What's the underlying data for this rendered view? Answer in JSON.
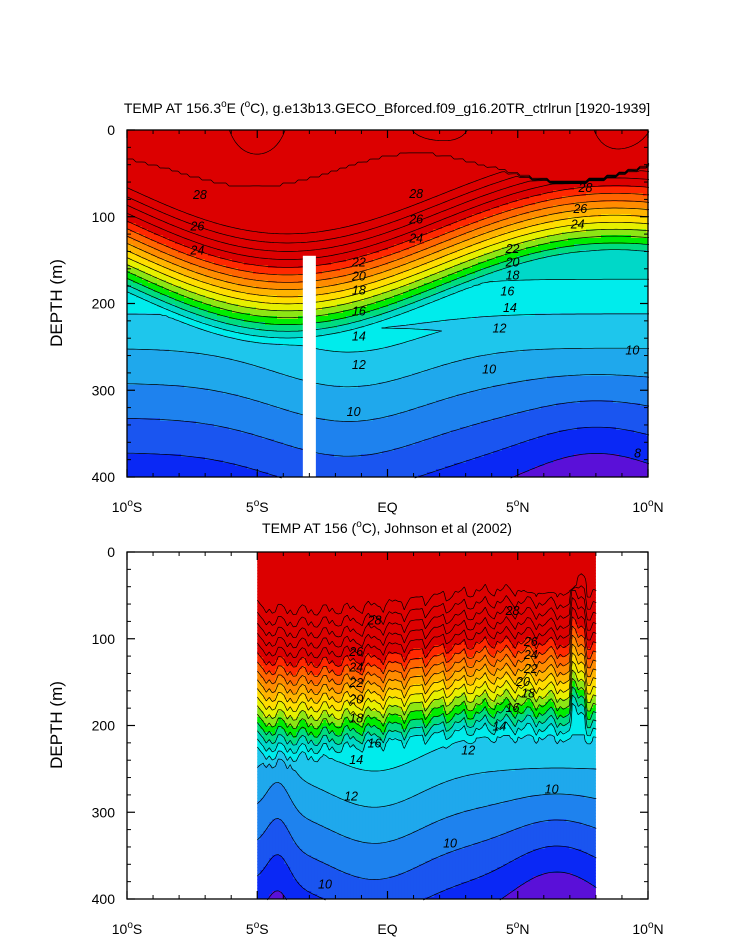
{
  "chart_data": [
    {
      "type": "contour",
      "title_prefix": "TEMP AT 156.3",
      "title_sup1": "o",
      "title_mid": "E (",
      "title_sup2": "o",
      "title_suffix": "C), g.e13b13.GECO_Bforced.f09_g16.20TR_ctrlrun [1920-1939]",
      "ylabel": "DEPTH (m)",
      "xlabel": "",
      "xlim": [
        -10,
        10
      ],
      "ylim": [
        0,
        400
      ],
      "y_inverted": true,
      "x_ticks": [
        {
          "v": -10,
          "num": "10",
          "sup": "o",
          "dir": "S"
        },
        {
          "v": -5,
          "num": "5",
          "sup": "o",
          "dir": "S"
        },
        {
          "v": 0,
          "num": "EQ",
          "sup": "",
          "dir": ""
        },
        {
          "v": 5,
          "num": "5",
          "sup": "o",
          "dir": "N"
        },
        {
          "v": 10,
          "num": "10",
          "sup": "o",
          "dir": "N"
        }
      ],
      "y_ticks": [
        0,
        100,
        200,
        300,
        400
      ],
      "contour_interval": 1,
      "no_data_x_range": [
        -3.25,
        -2.75
      ],
      "no_data_min_depth": 145,
      "contour_labels": [
        {
          "text": "28",
          "x": -7.2,
          "y": 75
        },
        {
          "text": "28",
          "x": 1.1,
          "y": 74
        },
        {
          "text": "28",
          "x": 7.6,
          "y": 67
        },
        {
          "text": "26",
          "x": -7.3,
          "y": 111
        },
        {
          "text": "26",
          "x": 1.1,
          "y": 103
        },
        {
          "text": "26",
          "x": 7.4,
          "y": 91
        },
        {
          "text": "24",
          "x": -7.3,
          "y": 139
        },
        {
          "text": "24",
          "x": 1.1,
          "y": 125
        },
        {
          "text": "24",
          "x": 7.3,
          "y": 109
        },
        {
          "text": "22",
          "x": -1.1,
          "y": 153
        },
        {
          "text": "22",
          "x": 4.8,
          "y": 137
        },
        {
          "text": "20",
          "x": -1.1,
          "y": 169
        },
        {
          "text": "20",
          "x": 4.8,
          "y": 153
        },
        {
          "text": "18",
          "x": -1.1,
          "y": 185
        },
        {
          "text": "18",
          "x": 4.8,
          "y": 168
        },
        {
          "text": "16",
          "x": -1.1,
          "y": 209
        },
        {
          "text": "16",
          "x": 4.6,
          "y": 186
        },
        {
          "text": "14",
          "x": -1.1,
          "y": 238
        },
        {
          "text": "14",
          "x": 4.7,
          "y": 205
        },
        {
          "text": "12",
          "x": -1.1,
          "y": 271
        },
        {
          "text": "12",
          "x": 4.3,
          "y": 229
        },
        {
          "text": "10",
          "x": 9.4,
          "y": 254
        },
        {
          "text": "10",
          "x": 3.9,
          "y": 276
        },
        {
          "text": "10",
          "x": -1.3,
          "y": 325
        },
        {
          "text": "8",
          "x": 9.6,
          "y": 373
        }
      ]
    },
    {
      "type": "contour",
      "title_prefix": "TEMP AT 156 (",
      "title_sup1": "o",
      "title_mid": "C), Johnson et al (2002)",
      "title_sup2": "",
      "title_suffix": "",
      "ylabel": "DEPTH (m)",
      "xlabel": "",
      "xlim": [
        -10,
        10
      ],
      "ylim": [
        0,
        400
      ],
      "y_inverted": true,
      "x_ticks": [
        {
          "v": -10,
          "num": "10",
          "sup": "o",
          "dir": "S"
        },
        {
          "v": -5,
          "num": "5",
          "sup": "o",
          "dir": "S"
        },
        {
          "v": 0,
          "num": "EQ",
          "sup": "",
          "dir": ""
        },
        {
          "v": 5,
          "num": "5",
          "sup": "o",
          "dir": "N"
        },
        {
          "v": 10,
          "num": "10",
          "sup": "o",
          "dir": "N"
        }
      ],
      "y_ticks": [
        0,
        100,
        200,
        300,
        400
      ],
      "contour_interval": 1,
      "data_x_range": [
        -5,
        8
      ],
      "contour_labels": [
        {
          "text": "28",
          "x": -0.5,
          "y": 79
        },
        {
          "text": "28",
          "x": 4.8,
          "y": 68
        },
        {
          "text": "26",
          "x": -1.2,
          "y": 115
        },
        {
          "text": "26",
          "x": 5.5,
          "y": 104
        },
        {
          "text": "24",
          "x": -1.2,
          "y": 133
        },
        {
          "text": "24",
          "x": 5.5,
          "y": 119
        },
        {
          "text": "22",
          "x": -1.2,
          "y": 151
        },
        {
          "text": "22",
          "x": 5.5,
          "y": 135
        },
        {
          "text": "20",
          "x": -1.2,
          "y": 170
        },
        {
          "text": "20",
          "x": 5.2,
          "y": 150
        },
        {
          "text": "18",
          "x": -1.2,
          "y": 192
        },
        {
          "text": "18",
          "x": 5.4,
          "y": 163
        },
        {
          "text": "16",
          "x": -0.5,
          "y": 221
        },
        {
          "text": "16",
          "x": 4.8,
          "y": 180
        },
        {
          "text": "14",
          "x": -1.2,
          "y": 240
        },
        {
          "text": "14",
          "x": 4.3,
          "y": 201
        },
        {
          "text": "12",
          "x": -1.4,
          "y": 282
        },
        {
          "text": "12",
          "x": 3.1,
          "y": 229
        },
        {
          "text": "10",
          "x": 6.3,
          "y": 274
        },
        {
          "text": "10",
          "x": 2.4,
          "y": 336
        },
        {
          "text": "10",
          "x": -2.4,
          "y": 383
        }
      ]
    }
  ],
  "colors": {
    "bins": [
      "#5a10d8",
      "#0a28f5",
      "#1a55f0",
      "#1e82ee",
      "#1fa8ec",
      "#1ec6ec",
      "#00ecec",
      "#00d8c8",
      "#00dc80",
      "#00ec00",
      "#8ce614",
      "#e6f000",
      "#ffdd00",
      "#ffb400",
      "#ff8c00",
      "#ff6400",
      "#ff2800",
      "#dc0000"
    ],
    "line": "#000000",
    "no_data": "#ffffff"
  }
}
